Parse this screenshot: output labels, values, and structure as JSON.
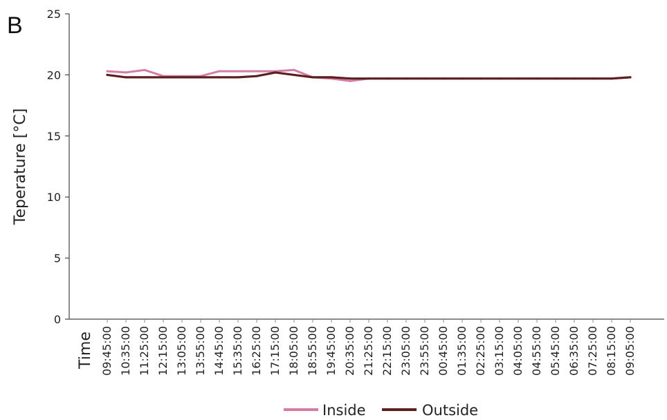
{
  "panel_label": "B",
  "chart_data": {
    "type": "line",
    "title": "",
    "xlabel": "Time",
    "ylabel": "Teperature [°C]",
    "ylim": [
      0,
      25
    ],
    "yticks": [
      0,
      5,
      10,
      15,
      20,
      25
    ],
    "x": [
      "09:45:00",
      "10:35:00",
      "11:25:00",
      "12:15:00",
      "13:05:00",
      "13:55:00",
      "14:45:00",
      "15:35:00",
      "16:25:00",
      "17:15:00",
      "18:05:00",
      "18:55:00",
      "19:45:00",
      "20:35:00",
      "21:25:00",
      "22:15:00",
      "23:05:00",
      "23:55:00",
      "00:45:00",
      "01:35:00",
      "02:25:00",
      "03:15:00",
      "04:05:00",
      "04:55:00",
      "05:45:00",
      "06:35:00",
      "07:25:00",
      "08:15:00",
      "09:05:00"
    ],
    "grid": false,
    "legend_position": "bottom-center",
    "series": [
      {
        "name": "Inside",
        "color": "#d57ba7",
        "values": [
          20.3,
          20.2,
          20.4,
          19.9,
          19.9,
          19.9,
          20.3,
          20.3,
          20.3,
          20.3,
          20.4,
          19.8,
          19.7,
          19.5,
          19.7,
          19.7,
          19.7,
          19.7,
          19.7,
          19.7,
          19.7,
          19.7,
          19.7,
          19.7,
          19.7,
          19.7,
          19.7,
          19.7,
          19.8
        ]
      },
      {
        "name": "Outside",
        "color": "#5b1f1f",
        "values": [
          20.0,
          19.8,
          19.8,
          19.8,
          19.8,
          19.8,
          19.8,
          19.8,
          19.9,
          20.2,
          20.0,
          19.8,
          19.8,
          19.7,
          19.7,
          19.7,
          19.7,
          19.7,
          19.7,
          19.7,
          19.7,
          19.7,
          19.7,
          19.7,
          19.7,
          19.7,
          19.7,
          19.7,
          19.8
        ]
      }
    ]
  }
}
